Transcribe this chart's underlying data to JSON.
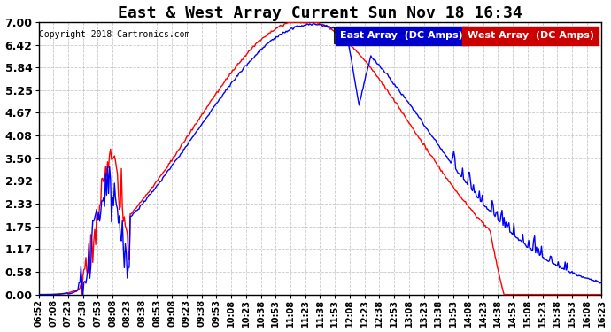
{
  "title": "East & West Array Current Sun Nov 18 16:34",
  "copyright": "Copyright 2018 Cartronics.com",
  "legend_east": "East Array  (DC Amps)",
  "legend_west": "West Array  (DC Amps)",
  "east_color": "#0000FF",
  "west_color": "#FF0000",
  "east_legend_bg": "#0000CC",
  "west_legend_bg": "#CC0000",
  "background_color": "#FFFFFF",
  "plot_bg_color": "#FFFFFF",
  "grid_color": "#BBBBBB",
  "yticks": [
    0.0,
    0.58,
    1.17,
    1.75,
    2.33,
    2.92,
    3.5,
    4.08,
    4.67,
    5.25,
    5.84,
    6.42,
    7.0
  ],
  "xtick_labels": [
    "06:52",
    "07:08",
    "07:23",
    "07:38",
    "07:53",
    "08:08",
    "08:23",
    "08:38",
    "08:53",
    "09:08",
    "09:23",
    "09:38",
    "09:53",
    "10:08",
    "10:23",
    "10:38",
    "10:53",
    "11:08",
    "11:23",
    "11:38",
    "11:53",
    "12:08",
    "12:23",
    "12:38",
    "12:53",
    "13:08",
    "13:23",
    "13:38",
    "13:53",
    "14:08",
    "14:23",
    "14:38",
    "14:53",
    "15:08",
    "15:23",
    "15:38",
    "15:53",
    "16:08",
    "16:23"
  ],
  "title_fontsize": 13,
  "copyright_fontsize": 7,
  "legend_fontsize": 8,
  "tick_fontsize": 7,
  "ytick_fontsize": 9,
  "ylim": [
    0.0,
    7.0
  ],
  "line_width": 1.0
}
